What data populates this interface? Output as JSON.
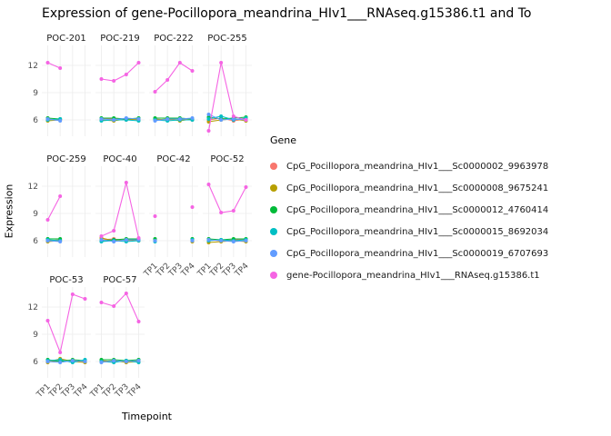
{
  "title": "Expression of gene-Pocillopora_meandrina_HIv1___RNAseq.g15386.t1 and To",
  "axes": {
    "x_label": "Timepoint",
    "y_label": "Expression"
  },
  "legend": {
    "title": "Gene",
    "position": "right"
  },
  "chart_data": {
    "type": "line",
    "x_categories": [
      "TP1",
      "TP2",
      "TP3",
      "TP4"
    ],
    "y_ticks": [
      6,
      9,
      12
    ],
    "y_domain": [
      4.2,
      14.2
    ],
    "grid": true,
    "series": [
      {
        "name": "CpG_Pocillopora_meandrina_HIv1___Sc0000002_9963978",
        "color": "#F8766D"
      },
      {
        "name": "CpG_Pocillopora_meandrina_HIv1___Sc0000008_9675241",
        "color": "#B79F00"
      },
      {
        "name": "CpG_Pocillopora_meandrina_HIv1___Sc0000012_4760414",
        "color": "#00BA38"
      },
      {
        "name": "CpG_Pocillopora_meandrina_HIv1___Sc0000015_8692034",
        "color": "#00BFC4"
      },
      {
        "name": "CpG_Pocillopora_meandrina_HIv1___Sc0000019_6707693",
        "color": "#619CFF"
      },
      {
        "name": "gene-Pocillopora_meandrina_HIv1___RNAseq.g15386.t1",
        "color": "#F564E3"
      }
    ],
    "facets": [
      {
        "name": "POC-201",
        "values": [
          [
            6.1,
            6.0,
            null,
            null
          ],
          [
            5.9,
            6.0,
            null,
            null
          ],
          [
            6.2,
            6.1,
            null,
            null
          ],
          [
            6.0,
            6.1,
            null,
            null
          ],
          [
            6.1,
            5.9,
            null,
            null
          ],
          [
            12.3,
            11.7,
            null,
            null
          ]
        ]
      },
      {
        "name": "POC-219",
        "values": [
          [
            6.1,
            6.1,
            6.0,
            6.1
          ],
          [
            6.0,
            5.9,
            6.1,
            6.0
          ],
          [
            6.2,
            6.2,
            6.1,
            6.2
          ],
          [
            5.9,
            6.0,
            6.0,
            5.9
          ],
          [
            6.1,
            6.0,
            6.2,
            6.1
          ],
          [
            10.5,
            10.3,
            11.0,
            12.3
          ]
        ]
      },
      {
        "name": "POC-222",
        "values": [
          [
            6.1,
            6.0,
            6.1,
            6.0
          ],
          [
            6.0,
            6.1,
            5.9,
            6.1
          ],
          [
            6.2,
            6.2,
            6.2,
            6.1
          ],
          [
            6.0,
            5.9,
            6.0,
            6.0
          ],
          [
            5.9,
            6.1,
            6.1,
            6.2
          ],
          [
            9.1,
            10.4,
            12.3,
            11.4
          ]
        ]
      },
      {
        "name": "POC-255",
        "values": [
          [
            6.0,
            6.2,
            5.9,
            6.1
          ],
          [
            5.8,
            6.0,
            6.1,
            5.9
          ],
          [
            6.3,
            6.1,
            6.2,
            6.3
          ],
          [
            6.1,
            6.4,
            6.0,
            6.2
          ],
          [
            6.6,
            6.0,
            6.1,
            6.0
          ],
          [
            4.8,
            12.3,
            6.4,
            6.0
          ]
        ]
      },
      {
        "name": "POC-259",
        "values": [
          [
            6.0,
            6.1,
            null,
            null
          ],
          [
            5.9,
            6.0,
            null,
            null
          ],
          [
            6.2,
            6.2,
            null,
            null
          ],
          [
            6.1,
            6.0,
            null,
            null
          ],
          [
            6.0,
            5.9,
            null,
            null
          ],
          [
            8.3,
            10.9,
            null,
            null
          ]
        ]
      },
      {
        "name": "POC-40",
        "values": [
          [
            6.1,
            6.2,
            6.0,
            6.1
          ],
          [
            6.3,
            6.0,
            6.1,
            6.0
          ],
          [
            6.0,
            6.1,
            6.2,
            6.2
          ],
          [
            5.9,
            6.0,
            5.9,
            6.0
          ],
          [
            6.1,
            5.9,
            6.1,
            6.1
          ],
          [
            6.5,
            7.1,
            12.4,
            6.3
          ]
        ]
      },
      {
        "name": "POC-42",
        "values": [
          [
            6.1,
            null,
            null,
            6.0
          ],
          [
            6.0,
            null,
            null,
            5.9
          ],
          [
            6.2,
            null,
            null,
            6.2
          ],
          [
            5.9,
            null,
            null,
            6.1
          ],
          [
            6.0,
            null,
            null,
            6.0
          ],
          [
            8.7,
            null,
            null,
            9.7
          ]
        ]
      },
      {
        "name": "POC-52",
        "values": [
          [
            6.1,
            6.0,
            6.1,
            6.1
          ],
          [
            5.8,
            5.9,
            6.0,
            5.9
          ],
          [
            6.2,
            6.1,
            6.2,
            6.2
          ],
          [
            6.0,
            6.1,
            6.0,
            6.1
          ],
          [
            6.1,
            6.0,
            5.9,
            6.0
          ],
          [
            12.2,
            9.1,
            9.3,
            11.9
          ]
        ]
      },
      {
        "name": "POC-53",
        "values": [
          [
            6.0,
            6.1,
            6.1,
            6.0
          ],
          [
            5.9,
            6.3,
            6.0,
            5.9
          ],
          [
            6.2,
            6.0,
            6.2,
            6.1
          ],
          [
            6.1,
            6.2,
            5.9,
            6.2
          ],
          [
            6.0,
            5.9,
            6.1,
            6.0
          ],
          [
            10.5,
            7.0,
            13.4,
            12.9
          ]
        ]
      },
      {
        "name": "POC-57",
        "values": [
          [
            6.1,
            6.0,
            6.0,
            6.1
          ],
          [
            6.0,
            6.1,
            5.9,
            6.0
          ],
          [
            6.2,
            6.2,
            6.1,
            6.2
          ],
          [
            6.0,
            5.9,
            6.1,
            5.9
          ],
          [
            5.9,
            6.1,
            6.0,
            6.1
          ],
          [
            12.5,
            12.1,
            13.5,
            10.4
          ]
        ]
      }
    ]
  }
}
